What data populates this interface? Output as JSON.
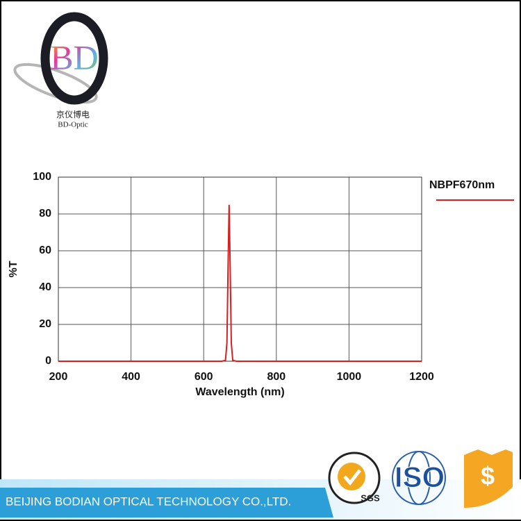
{
  "logo": {
    "mark": "BD",
    "name_cn": "京仪博电",
    "name_en": "BD-Optic"
  },
  "footer": {
    "company": "BEIJING BODIAN OPTICAL TECHNOLOGY CO.,LTD.",
    "badges": [
      "SGS",
      "ISO",
      "$"
    ]
  },
  "chart_data": {
    "type": "line",
    "x_label": "Wavelength (nm)",
    "y_label": "%T",
    "x": [
      200,
      600,
      650,
      660,
      664,
      667,
      670,
      673,
      676,
      680,
      690,
      750,
      1200
    ],
    "series": [
      {
        "name": "NBPF670nm",
        "color": "#d42020",
        "values": [
          0,
          0,
          0,
          0.5,
          10,
          50,
          85,
          50,
          10,
          0.5,
          0,
          0,
          0
        ]
      }
    ],
    "xlim": [
      200,
      1200
    ],
    "xticks": [
      200,
      400,
      600,
      800,
      1000,
      1200
    ],
    "ylim": [
      0,
      100
    ],
    "yticks": [
      0,
      20,
      40,
      60,
      80,
      100
    ],
    "grid": true,
    "legend": "right"
  }
}
